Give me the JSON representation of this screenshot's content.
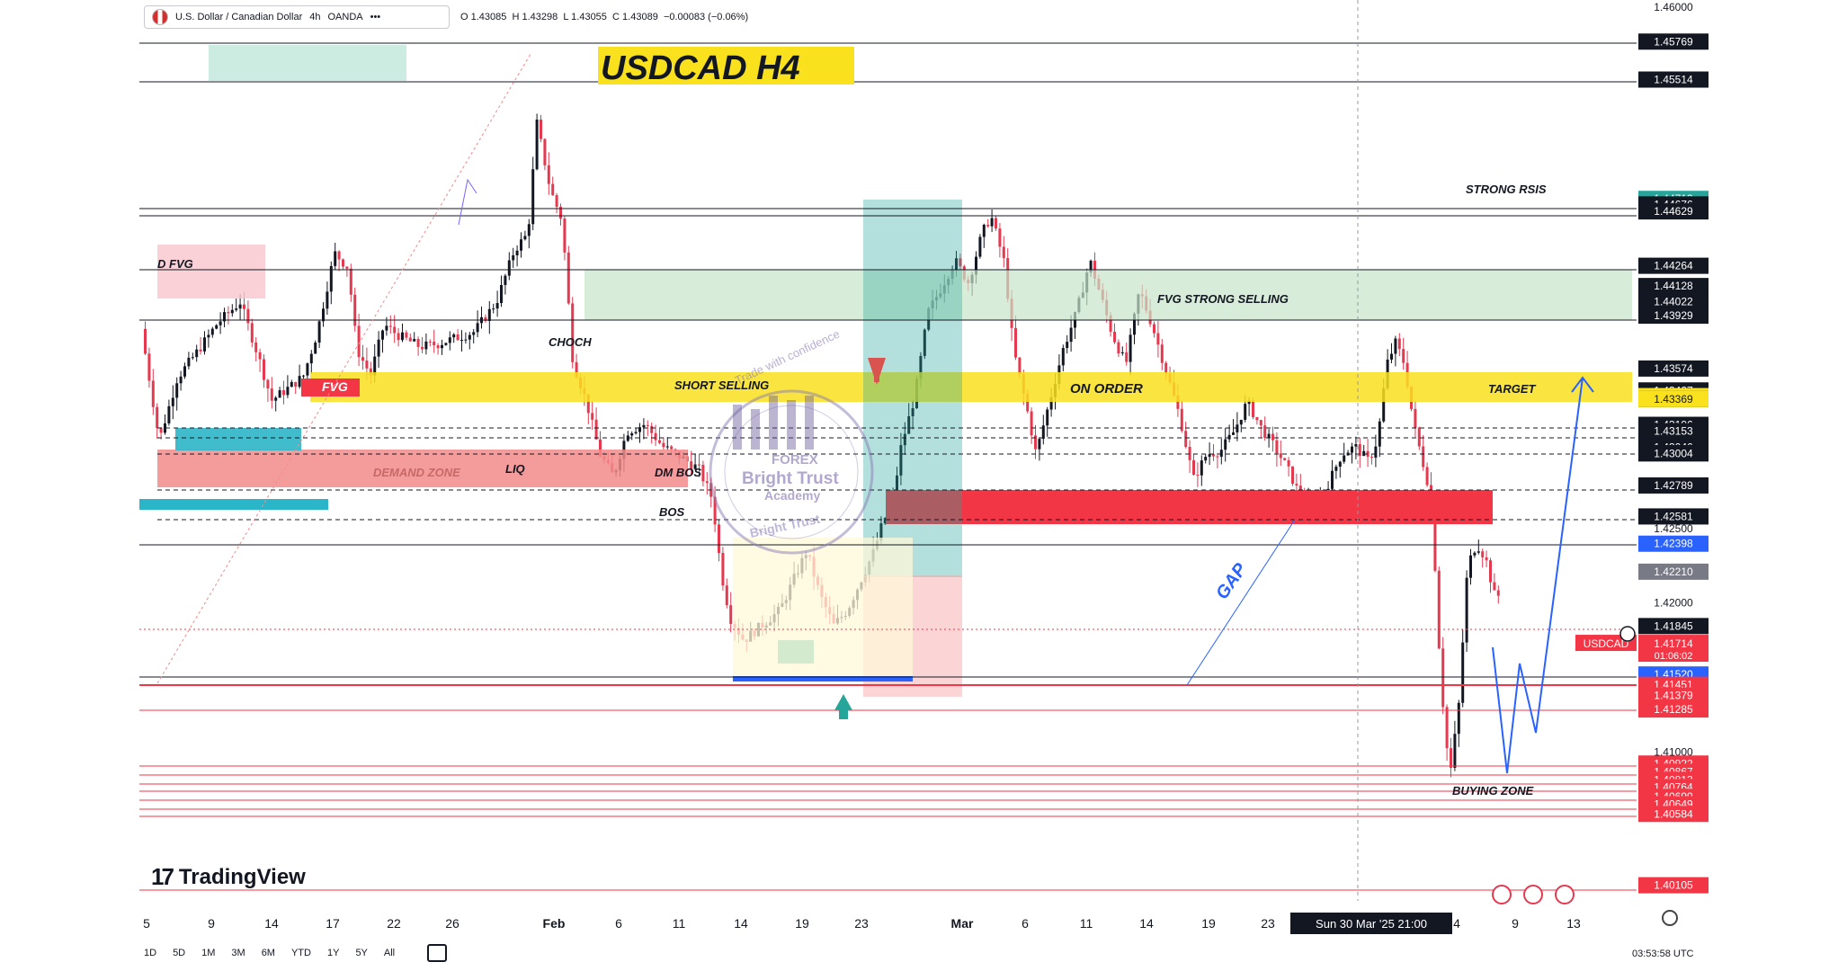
{
  "header": {
    "symbol": "U.S. Dollar / Canadian Dollar",
    "interval": "4h",
    "exchange": "OANDA",
    "more": "•••",
    "ohlc": {
      "o": "O 1.43085",
      "h": "H 1.43298",
      "l": "L 1.43055",
      "c": "C 1.43089",
      "chg": "−0.00083 (−0.06%)"
    }
  },
  "chart_data": {
    "type": "candlestick",
    "title": "USDCAD H4",
    "ylim": [
      1.4,
      1.46
    ],
    "x_ticks": [
      "5",
      "9",
      "14",
      "17",
      "22",
      "26",
      "Feb",
      "6",
      "11",
      "14",
      "19",
      "23",
      "Mar",
      "6",
      "11",
      "14",
      "19",
      "23",
      "4",
      "9",
      "13"
    ],
    "x_marker": "Sun 30 Mar '25  21:00",
    "price_axis_plain": [
      "1.46000",
      "1.42500",
      "1.42000",
      "1.41000"
    ],
    "price_labels": [
      {
        "value": 1.45769,
        "label": "1.45769",
        "color": "#131722"
      },
      {
        "value": 1.45514,
        "label": "1.45514",
        "color": "#131722"
      },
      {
        "value": 1.44713,
        "label": "1.44713",
        "color": "#26a69a"
      },
      {
        "value": 1.44676,
        "label": "1.44676",
        "color": "#131722"
      },
      {
        "value": 1.44629,
        "label": "1.44629",
        "color": "#131722"
      },
      {
        "value": 1.44264,
        "label": "1.44264",
        "color": "#131722"
      },
      {
        "value": 1.44128,
        "label": "1.44128",
        "color": "#131722"
      },
      {
        "value": 1.44022,
        "label": "1.44022",
        "color": "#131722"
      },
      {
        "value": 1.43929,
        "label": "1.43929",
        "color": "#131722"
      },
      {
        "value": 1.43574,
        "label": "1.43574",
        "color": "#131722"
      },
      {
        "value": 1.43427,
        "label": "1.43427",
        "color": "#131722"
      },
      {
        "value": 1.43389,
        "label": "1.43389",
        "color": "#f9e11e"
      },
      {
        "value": 1.43369,
        "label": "1.43369",
        "color": "#131722"
      },
      {
        "value": 1.43369,
        "label": "1.43369",
        "color": "#f9e11e"
      },
      {
        "value": 1.43196,
        "label": "1.43196",
        "color": "#131722"
      },
      {
        "value": 1.43153,
        "label": "1.43153",
        "color": "#131722"
      },
      {
        "value": 1.43046,
        "label": "1.43046",
        "color": "#131722"
      },
      {
        "value": 1.43006,
        "label": "1.43006",
        "color": "#131722"
      },
      {
        "value": 1.43004,
        "label": "1.43004",
        "color": "#131722"
      },
      {
        "value": 1.42789,
        "label": "1.42789",
        "color": "#131722"
      },
      {
        "value": 1.42581,
        "label": "1.42581",
        "color": "#131722"
      },
      {
        "value": 1.42398,
        "label": "1.42398",
        "color": "#2962ff"
      },
      {
        "value": 1.4221,
        "label": "1.42210",
        "color": "#787b86"
      },
      {
        "value": 1.41845,
        "label": "1.41845",
        "color": "#131722"
      },
      {
        "value": 1.41714,
        "label": "1.41714",
        "color": "#f23645"
      },
      {
        "value": 1.4152,
        "label": "1.41520",
        "color": "#2962ff"
      },
      {
        "value": 1.41451,
        "label": "1.41451",
        "color": "#f23645"
      },
      {
        "value": 1.41379,
        "label": "1.41379",
        "color": "#f23645"
      },
      {
        "value": 1.41285,
        "label": "1.41285",
        "color": "#f23645"
      },
      {
        "value": 1.40922,
        "label": "1.40922",
        "color": "#f23645"
      },
      {
        "value": 1.40867,
        "label": "1.40867",
        "color": "#f23645"
      },
      {
        "value": 1.40813,
        "label": "1.40813",
        "color": "#f23645"
      },
      {
        "value": 1.40764,
        "label": "1.40764",
        "color": "#f23645"
      },
      {
        "value": 1.40699,
        "label": "1.40699",
        "color": "#f23645"
      },
      {
        "value": 1.40649,
        "label": "1.40649",
        "color": "#f23645"
      },
      {
        "value": 1.40584,
        "label": "1.40584",
        "color": "#f23645"
      },
      {
        "value": 1.40105,
        "label": "1.40105",
        "color": "#f23645"
      }
    ],
    "current": {
      "symbol": "USDCAD",
      "price": "1.41714",
      "countdown": "01:06:02"
    },
    "zones": [
      {
        "name": "D FVG",
        "from": 1.4397,
        "to": 1.4432,
        "color": "#f7c6cc"
      },
      {
        "name": "FVG",
        "from": 1.4312,
        "to": 1.4336,
        "color": "#f23645"
      },
      {
        "name": "FVG STRONG SELLING",
        "from": 1.4338,
        "to": 1.4389,
        "color": "#c8e6c9"
      },
      {
        "name": "SHORT SELLING",
        "from": 1.4314,
        "to": 1.4335,
        "color": "#f9e11e"
      },
      {
        "name": "ON ORDER",
        "from": 1.4314,
        "to": 1.4335,
        "color": "#f9e11e"
      },
      {
        "name": "TARGET",
        "from": 1.4314,
        "to": 1.4335,
        "color": "#f9e11e"
      },
      {
        "name": "DEMAND ZONE",
        "from": 1.4279,
        "to": 1.4301,
        "color": "#f28b8b"
      },
      {
        "name": "red block",
        "from": 1.4259,
        "to": 1.4279,
        "color": "#f23645"
      }
    ],
    "labels": [
      "STRONG RSIS",
      "D FVG",
      "FVG",
      "CHOCH",
      "LIQ",
      "DEMAND ZONE",
      "DM BOS",
      "BOS",
      "SHORT SELLING",
      "ON ORDER",
      "TARGET",
      "FVG STRONG SELLING",
      "GAP",
      "BUYING ZONE"
    ],
    "watermark": [
      "Trade with confidence",
      "FOREX",
      "Bright Trust",
      "Academy",
      "Bright Trust"
    ]
  },
  "branding": {
    "logo": "TradingView"
  },
  "bottom_toolbar": {
    "ranges": [
      "1D",
      "5D",
      "1M",
      "3M",
      "6M",
      "YTD",
      "1Y",
      "5Y",
      "All"
    ],
    "clock": "03:53:58 UTC"
  },
  "colors": {
    "up": "#131722",
    "down": "#e53950",
    "green_up": "#26a69a",
    "yellow": "#f9e11e",
    "red": "#f23645",
    "blue": "#2962ff"
  }
}
